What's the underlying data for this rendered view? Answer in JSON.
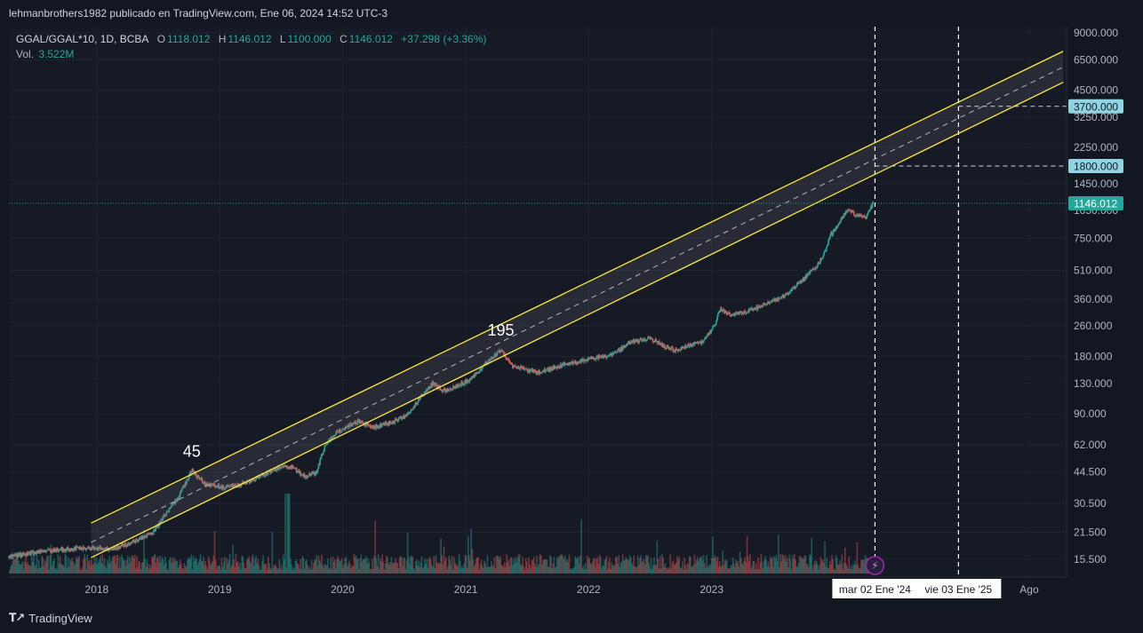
{
  "header": {
    "publisher": "lehmanbrothers1982 publicado en TradingView.com, Ene 06, 2024 14:52 UTC-3"
  },
  "legend": {
    "symbol": "GGAL/GGAL*10, 1D, BCBA",
    "open_label": "O",
    "open_value": "1118.012",
    "high_label": "H",
    "high_value": "1146.012",
    "low_label": "L",
    "low_value": "1100.000",
    "close_label": "C",
    "close_value": "1146.012",
    "change": "+37.298 (+3.36%)",
    "vol_label": "Vol.",
    "vol_value": "3.522M"
  },
  "footer": {
    "brand": "TradingView",
    "brand_icon": "tradingview-logo-icon"
  },
  "colors": {
    "background": "#131722",
    "up": "#26a69a",
    "down": "#ef5350",
    "channel": "#ffeb3b",
    "price_badge": "#26a69a",
    "level_badge": "#8fd4e0"
  },
  "chart_data": {
    "type": "candlestick",
    "y_scale": "log",
    "ylim": [
      12.5,
      9700
    ],
    "xlim": [
      "2017-04-15",
      "2025-11-20"
    ],
    "grid": true,
    "y_ticks": [
      15.5,
      21.5,
      30.5,
      44.5,
      62,
      90,
      130,
      180,
      260,
      360,
      510,
      750,
      1050,
      1450,
      2250,
      3250,
      4500,
      6500,
      9000
    ],
    "y_tick_labels": [
      "15.500",
      "21.500",
      "30.500",
      "44.500",
      "62.000",
      "90.000",
      "130.000",
      "180.000",
      "260.000",
      "360.000",
      "510.000",
      "750.000",
      "1050.000",
      "1450.000",
      "2250.000",
      "3250.000",
      "4500.000",
      "6500.000",
      "9000.000"
    ],
    "x_ticks": [
      "2018-01-01",
      "2019-01-01",
      "2020-01-01",
      "2021-01-01",
      "2022-01-01",
      "2023-01-01",
      "2025-08-01"
    ],
    "x_tick_labels": [
      "2018",
      "2019",
      "2020",
      "2021",
      "2022",
      "2023",
      "Ago"
    ],
    "last_price": 1146.012,
    "last_price_label": "1146.012",
    "price_path": [
      [
        "2017-04-15",
        16.0
      ],
      [
        "2017-08-01",
        17.2
      ],
      [
        "2017-12-15",
        17.8
      ],
      [
        "2018-02-15",
        17.5
      ],
      [
        "2018-05-01",
        19.5
      ],
      [
        "2018-06-20",
        21.8
      ],
      [
        "2018-08-01",
        28.0
      ],
      [
        "2018-09-01",
        33.0
      ],
      [
        "2018-10-10",
        45.0
      ],
      [
        "2018-11-20",
        38.5
      ],
      [
        "2019-01-15",
        37.0
      ],
      [
        "2019-03-01",
        38.0
      ],
      [
        "2019-05-01",
        42.0
      ],
      [
        "2019-06-20",
        46.5
      ],
      [
        "2019-08-05",
        47.5
      ],
      [
        "2019-09-10",
        42.0
      ],
      [
        "2019-10-15",
        44.0
      ],
      [
        "2019-11-10",
        62.0
      ],
      [
        "2019-12-15",
        72.0
      ],
      [
        "2020-02-15",
        82.0
      ],
      [
        "2020-04-01",
        76.0
      ],
      [
        "2020-06-01",
        82.0
      ],
      [
        "2020-07-15",
        90.0
      ],
      [
        "2020-08-20",
        110.0
      ],
      [
        "2020-09-25",
        130.0
      ],
      [
        "2020-11-01",
        118.0
      ],
      [
        "2021-01-10",
        135.0
      ],
      [
        "2021-03-10",
        170.0
      ],
      [
        "2021-04-15",
        195.0
      ],
      [
        "2021-05-20",
        160.0
      ],
      [
        "2021-08-01",
        148.0
      ],
      [
        "2021-11-01",
        165.0
      ],
      [
        "2022-01-15",
        175.0
      ],
      [
        "2022-03-10",
        183.0
      ],
      [
        "2022-05-10",
        215.0
      ],
      [
        "2022-07-01",
        225.0
      ],
      [
        "2022-08-10",
        205.0
      ],
      [
        "2022-09-20",
        192.0
      ],
      [
        "2022-10-20",
        205.0
      ],
      [
        "2022-12-10",
        218.0
      ],
      [
        "2023-01-10",
        260.0
      ],
      [
        "2023-01-25",
        320.0
      ],
      [
        "2023-03-01",
        295.0
      ],
      [
        "2023-05-10",
        320.0
      ],
      [
        "2023-07-01",
        350.0
      ],
      [
        "2023-08-10",
        380.0
      ],
      [
        "2023-10-01",
        460.0
      ],
      [
        "2023-11-10",
        540.0
      ],
      [
        "2023-12-01",
        620.0
      ],
      [
        "2023-12-20",
        780.0
      ],
      [
        "2024-01-05",
        850.0
      ],
      [
        "2024-02-10",
        1080.0
      ],
      [
        "2024-03-01",
        1000.0
      ],
      [
        "2024-04-01",
        960.0
      ],
      [
        "2024-04-25",
        1146.012
      ]
    ],
    "channel": {
      "upper": [
        [
          "2017-12-15",
          24.0
        ],
        [
          "2025-11-10",
          7200.0
        ]
      ],
      "middle": [
        [
          "2017-12-15",
          19.0
        ],
        [
          "2025-11-10",
          5950.0
        ]
      ],
      "lower": [
        [
          "2017-12-15",
          15.8
        ],
        [
          "2025-11-10",
          4950.0
        ]
      ]
    },
    "annotations": [
      {
        "text": "45",
        "x": "2018-10-10",
        "y": 45.0
      },
      {
        "text": "195",
        "x": "2021-04-15",
        "y": 195.0
      }
    ],
    "horizontal_levels": [
      {
        "value": 3700,
        "label": "3700.000",
        "from": "2025-01-03"
      },
      {
        "value": 1800,
        "label": "1800.000",
        "from": "2024-04-30"
      }
    ],
    "vertical_markers": [
      {
        "x": "2024-04-30",
        "label": "mar 02 Ene '24"
      },
      {
        "x": "2025-01-03",
        "label": "vie 03 Ene '25"
      }
    ],
    "event_icon": "lightning-icon",
    "volume": "Vol. 3.522M"
  }
}
